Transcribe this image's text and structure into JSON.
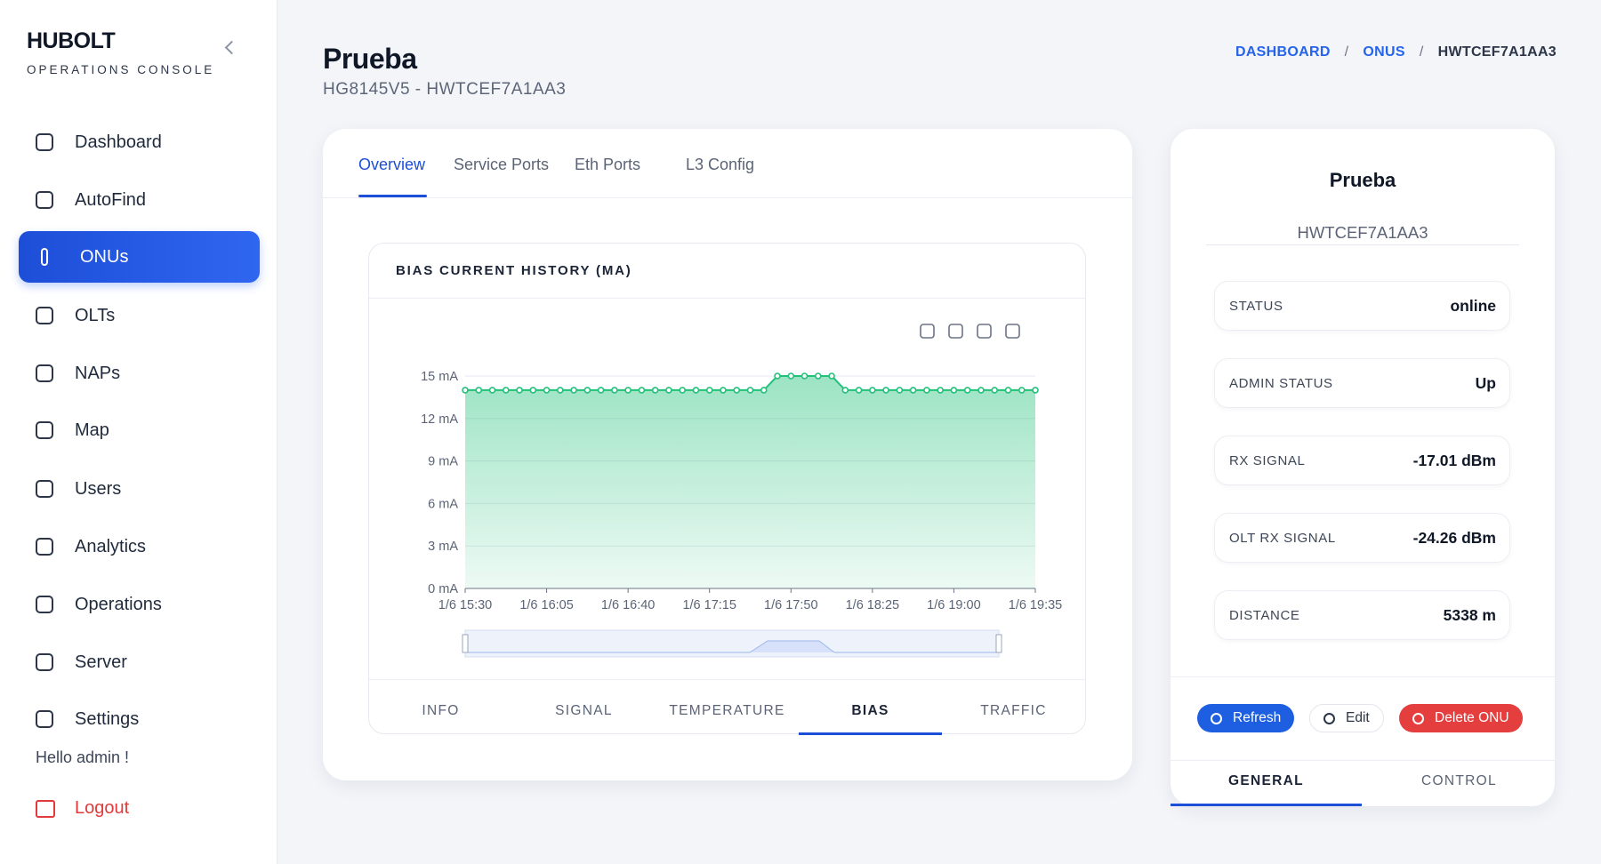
{
  "sidebar": {
    "brand": "HUBOLT",
    "subtitle": "OPERATIONS CONSOLE",
    "nav": [
      "Dashboard",
      "AutoFind",
      "ONUs",
      "OLTs",
      "NAPs",
      "Map",
      "Users",
      "Analytics",
      "Operations",
      "Server",
      "Settings"
    ],
    "active": 2,
    "greeting": "Hello admin !",
    "logout": "Logout"
  },
  "header": {
    "title": "Prueba",
    "subtitle": "HG8145V5 - HWTCEF7A1AA3",
    "breadcrumb": [
      "DASHBOARD",
      "ONUS",
      "HWTCEF7A1AA3"
    ]
  },
  "tabs": [
    "Overview",
    "Service Ports",
    "Eth Ports",
    "L3 Config"
  ],
  "chart": {
    "type": "line",
    "title": "BIAS CURRENT HISTORY (MA)",
    "color": "#22c17a",
    "categories": [
      "1/6 15:30",
      null,
      null,
      null,
      null,
      null,
      "1/6 16:05",
      null,
      null,
      null,
      null,
      null,
      "1/6 16:40",
      null,
      null,
      null,
      null,
      null,
      "1/6 17:15",
      null,
      null,
      null,
      null,
      null,
      "1/6 17:50",
      null,
      null,
      null,
      null,
      null,
      "1/6 18:25",
      null,
      null,
      null,
      null,
      null,
      "1/6 19:00",
      null,
      null,
      null,
      null,
      null,
      "1/6 19:35"
    ],
    "values": [
      14,
      14,
      14,
      14,
      14,
      14,
      14,
      14,
      14,
      14,
      14,
      14,
      14,
      14,
      14,
      14,
      14,
      14,
      14,
      14,
      14,
      14,
      14,
      15,
      15,
      15,
      15,
      15,
      14,
      14,
      14,
      14,
      14,
      14,
      14,
      14,
      14,
      14,
      14,
      14,
      14,
      14,
      14
    ],
    "ylim": [
      0,
      15
    ],
    "yticks": [
      {
        "value": 0,
        "label": "0 mA"
      },
      {
        "value": 3,
        "label": "3 mA"
      },
      {
        "value": 6,
        "label": "6 mA"
      },
      {
        "value": 9,
        "label": "9 mA"
      },
      {
        "value": 12,
        "label": "12 mA"
      },
      {
        "value": 15,
        "label": "15 mA"
      }
    ],
    "grid": true
  },
  "chart_tabs": [
    "INFO",
    "SIGNAL",
    "TEMPERATURE",
    "BIAS",
    "TRAFFIC"
  ],
  "chart_tab_active": 3,
  "device": {
    "name": "Prueba",
    "serial": "HWTCEF7A1AA3",
    "fields": [
      {
        "label": "STATUS",
        "value": "online"
      },
      {
        "label": "ADMIN STATUS",
        "value": "Up"
      },
      {
        "label": "RX SIGNAL",
        "value": "-17.01 dBm"
      },
      {
        "label": "OLT RX SIGNAL",
        "value": "-24.26 dBm"
      },
      {
        "label": "DISTANCE",
        "value": "5338 m"
      }
    ],
    "buttons": [
      "Refresh",
      "Edit",
      "Delete ONU"
    ],
    "tabs": [
      "GENERAL",
      "CONTROL"
    ]
  }
}
